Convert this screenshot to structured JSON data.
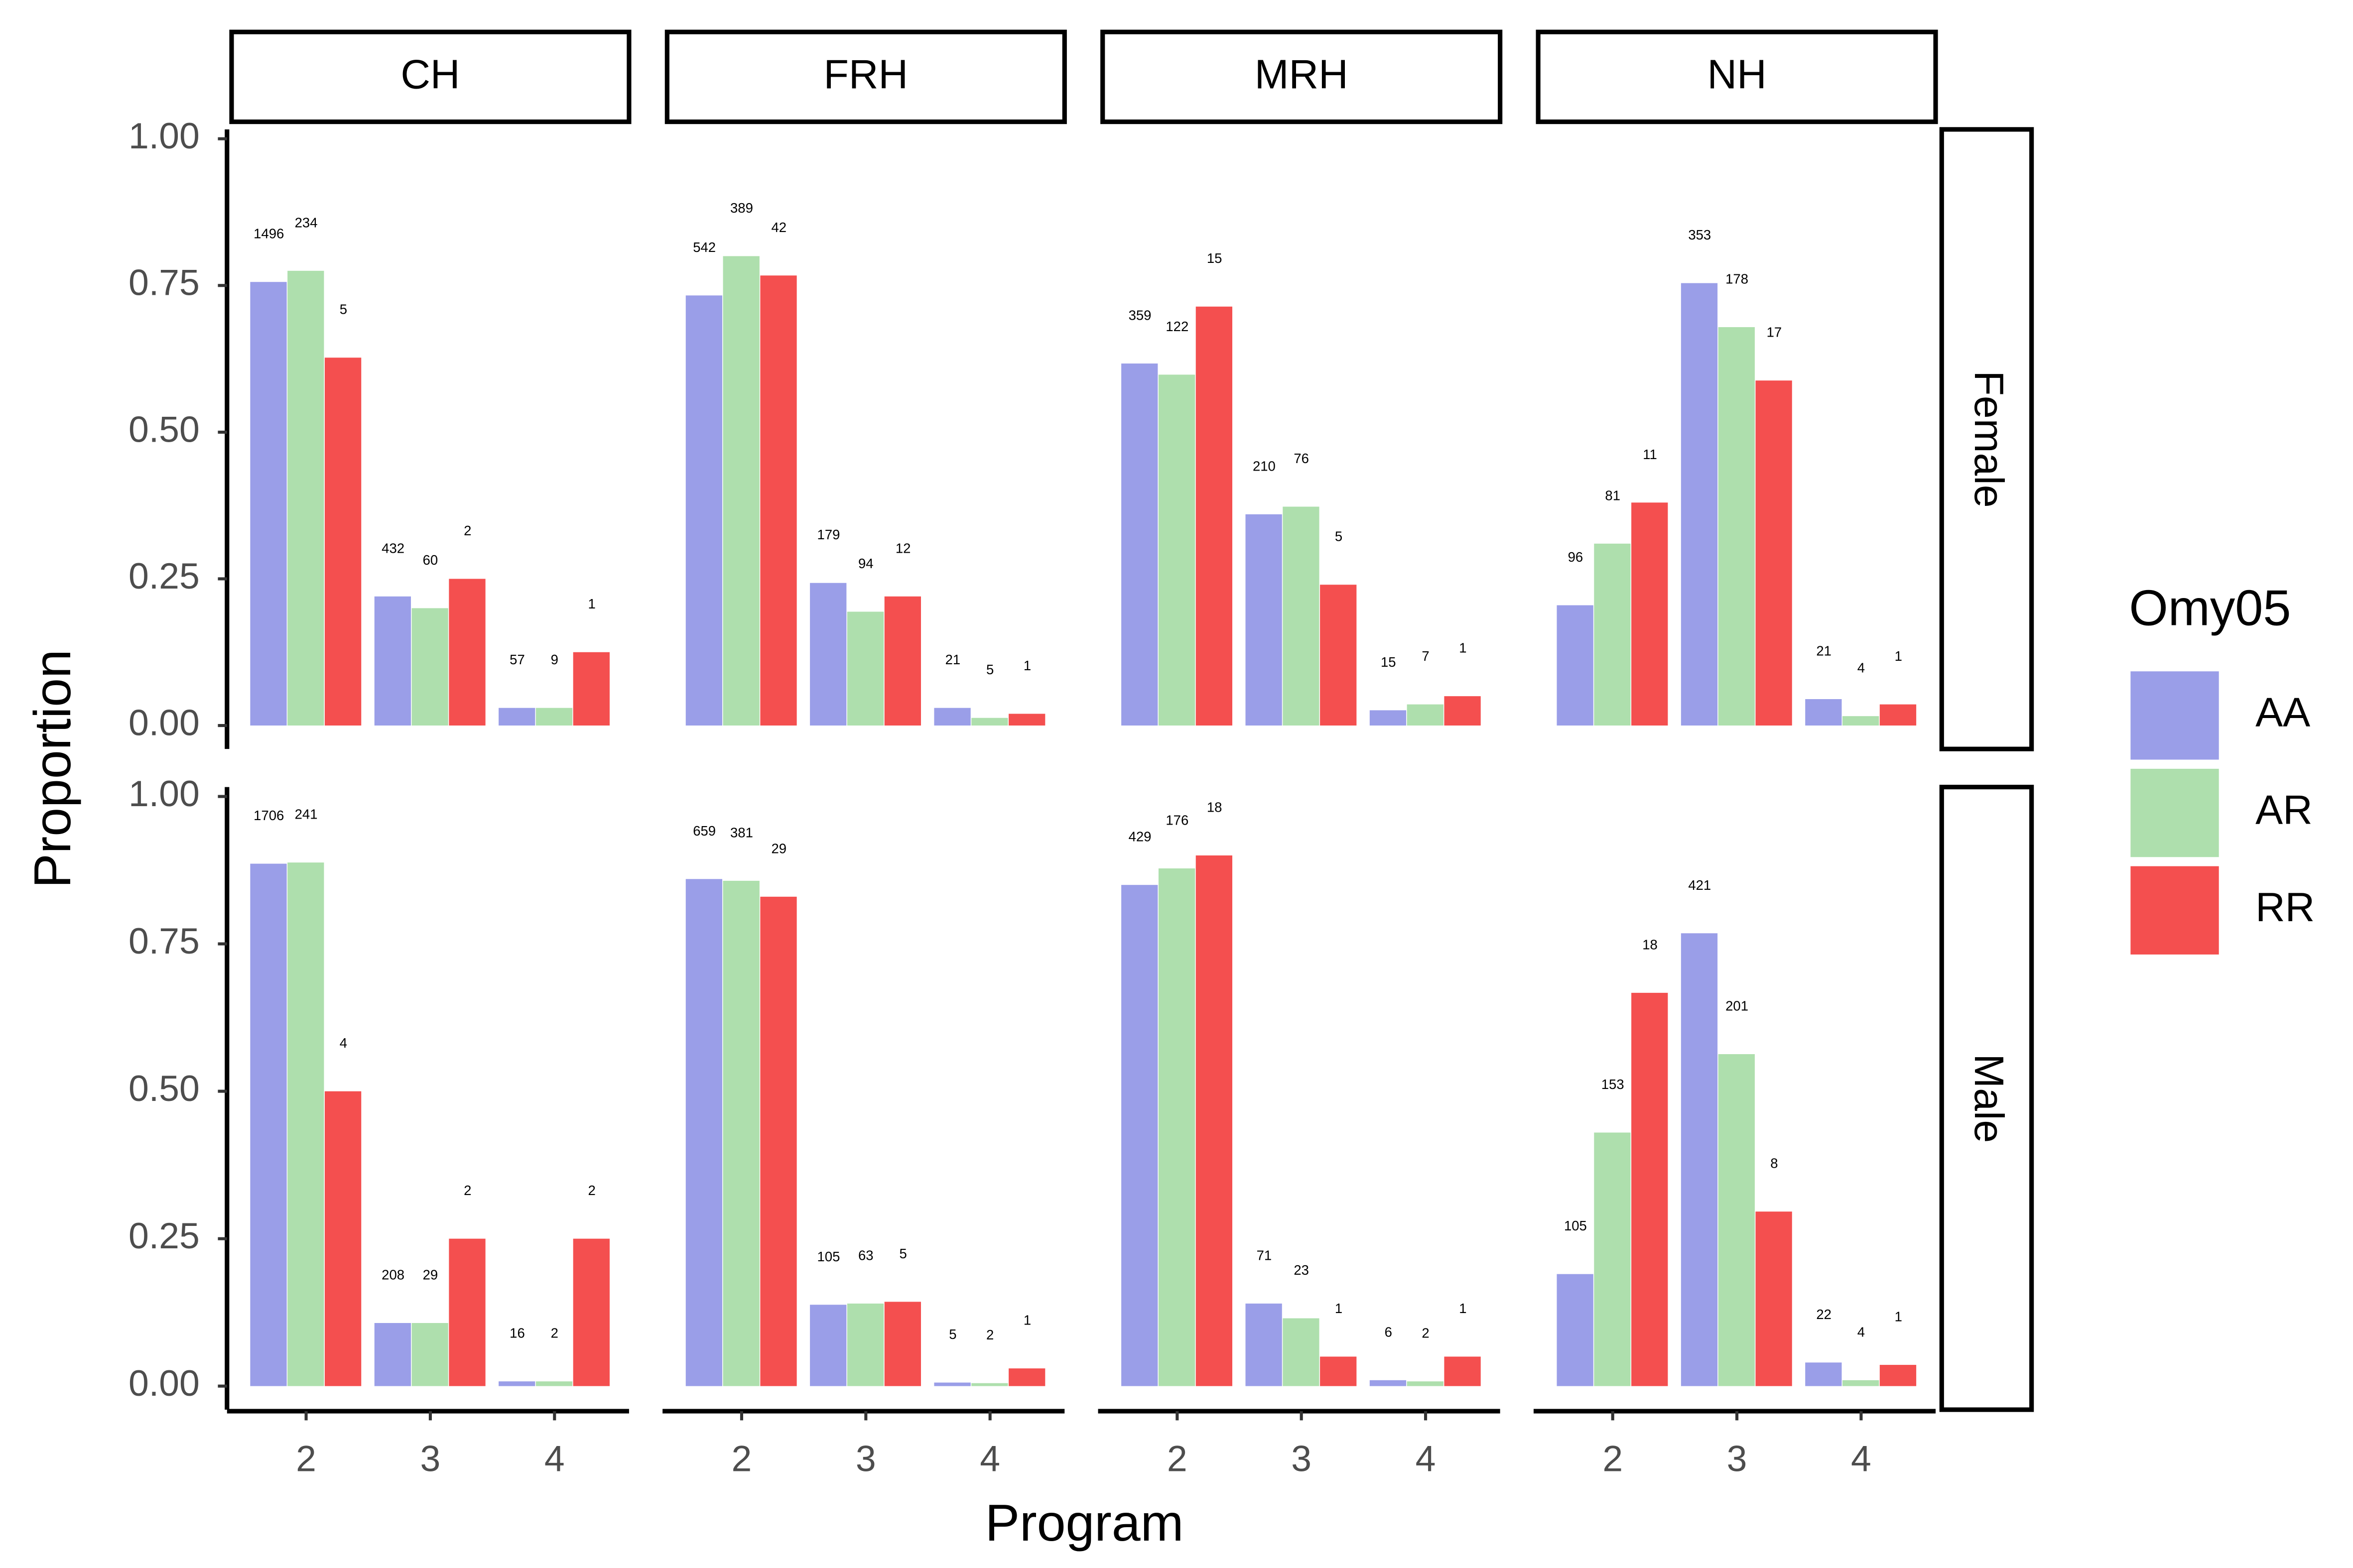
{
  "chart_data": {
    "type": "bar",
    "x_label": "Program",
    "y_label": "Proportion",
    "legend_title": "Omy05",
    "legend_position": "right",
    "columns": [
      "CH",
      "FRH",
      "MRH",
      "NH"
    ],
    "rows": [
      "Female",
      "Male"
    ],
    "categories": [
      "2",
      "3",
      "4"
    ],
    "ylim": [
      -0.04,
      1.016
    ],
    "yticks": [
      {
        "value": 0,
        "label": "0.00"
      },
      {
        "value": 0.25,
        "label": "0.25"
      },
      {
        "value": 0.5,
        "label": "0.50"
      },
      {
        "value": 0.75,
        "label": "0.75"
      },
      {
        "value": 1,
        "label": "1.00"
      }
    ],
    "grid": false,
    "series": [
      {
        "name": "AA",
        "color": "#9a9ee8",
        "values": [
          [
            [
              0.756,
              0.22,
              0.03
            ],
            [
              0.733,
              0.243,
              0.03
            ],
            [
              0.617,
              0.36,
              0.026
            ],
            [
              0.205,
              0.754,
              0.045
            ]
          ],
          [
            [
              0.886,
              0.107,
              0.008
            ],
            [
              0.86,
              0.138,
              0.006
            ],
            [
              0.85,
              0.14,
              0.01
            ],
            [
              0.19,
              0.768,
              0.04
            ]
          ]
        ],
        "counts": [
          [
            [
              1496,
              432,
              57
            ],
            [
              542,
              179,
              21
            ],
            [
              359,
              210,
              15
            ],
            [
              96,
              353,
              21
            ]
          ],
          [
            [
              1706,
              208,
              16
            ],
            [
              659,
              105,
              5
            ],
            [
              429,
              71,
              6
            ],
            [
              105,
              421,
              22
            ]
          ]
        ]
      },
      {
        "name": "AR",
        "color": "#aedfad",
        "values": [
          [
            [
              0.775,
              0.2,
              0.03
            ],
            [
              0.8,
              0.194,
              0.013
            ],
            [
              0.598,
              0.373,
              0.036
            ],
            [
              0.31,
              0.679,
              0.016
            ]
          ],
          [
            [
              0.888,
              0.107,
              0.008
            ],
            [
              0.857,
              0.14,
              0.005
            ],
            [
              0.878,
              0.115,
              0.008
            ],
            [
              0.43,
              0.563,
              0.01
            ]
          ]
        ],
        "counts": [
          [
            [
              234,
              60,
              9
            ],
            [
              389,
              94,
              5
            ],
            [
              122,
              76,
              7
            ],
            [
              81,
              178,
              4
            ]
          ],
          [
            [
              241,
              29,
              2
            ],
            [
              381,
              63,
              2
            ],
            [
              176,
              23,
              2
            ],
            [
              153,
              201,
              4
            ]
          ]
        ]
      },
      {
        "name": "RR",
        "color": "#f44f4f",
        "values": [
          [
            [
              0.627,
              0.25,
              0.125
            ],
            [
              0.767,
              0.22,
              0.02
            ],
            [
              0.714,
              0.24,
              0.05
            ],
            [
              0.38,
              0.588,
              0.036
            ]
          ],
          [
            [
              0.5,
              0.25,
              0.25
            ],
            [
              0.83,
              0.143,
              0.03
            ],
            [
              0.9,
              0.05,
              0.05
            ],
            [
              0.667,
              0.296,
              0.036
            ]
          ]
        ],
        "counts": [
          [
            [
              5,
              2,
              1
            ],
            [
              42,
              12,
              1
            ],
            [
              15,
              5,
              1
            ],
            [
              11,
              17,
              1
            ]
          ],
          [
            [
              4,
              2,
              2
            ],
            [
              29,
              5,
              1
            ],
            [
              18,
              1,
              1
            ],
            [
              18,
              8,
              1
            ]
          ]
        ]
      }
    ]
  }
}
